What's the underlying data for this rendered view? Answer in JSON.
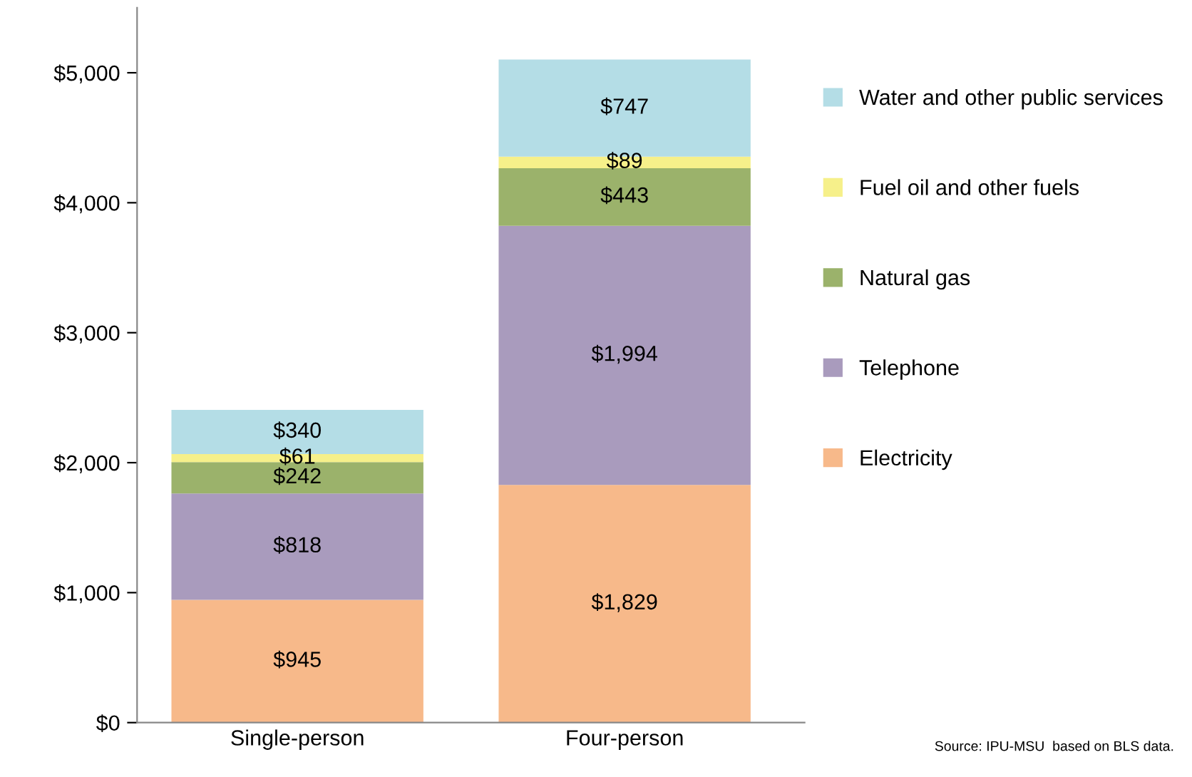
{
  "chart_data": {
    "type": "bar",
    "stacked": true,
    "categories": [
      "Single-person",
      "Four-person"
    ],
    "series": [
      {
        "name": "Electricity",
        "color": "#f7b98a",
        "values": [
          945,
          1829
        ],
        "value_labels": [
          "$945",
          "$1,829"
        ]
      },
      {
        "name": "Telephone",
        "color": "#a99bbd",
        "values": [
          818,
          1994
        ],
        "value_labels": [
          "$818",
          "$1,994"
        ]
      },
      {
        "name": "Natural gas",
        "color": "#9bb26b",
        "values": [
          242,
          443
        ],
        "value_labels": [
          "$242",
          "$443"
        ]
      },
      {
        "name": "Fuel oil and other fuels",
        "color": "#f6f08a",
        "values": [
          61,
          89
        ],
        "value_labels": [
          "$61",
          "$89"
        ]
      },
      {
        "name": "Water and other public services",
        "color": "#b4dde6",
        "values": [
          340,
          747
        ],
        "value_labels": [
          "$340",
          "$747"
        ]
      }
    ],
    "ylim": [
      0,
      5500
    ],
    "yticks": [
      {
        "value": 0,
        "label": "$0"
      },
      {
        "value": 1000,
        "label": "$1,000"
      },
      {
        "value": 2000,
        "label": "$2,000"
      },
      {
        "value": 3000,
        "label": "$3,000"
      },
      {
        "value": 4000,
        "label": "$4,000"
      },
      {
        "value": 5000,
        "label": "$5,000"
      }
    ],
    "grid": false,
    "legend": "right",
    "annotations": [
      "Source: IPU-MSU  based on BLS data."
    ]
  }
}
